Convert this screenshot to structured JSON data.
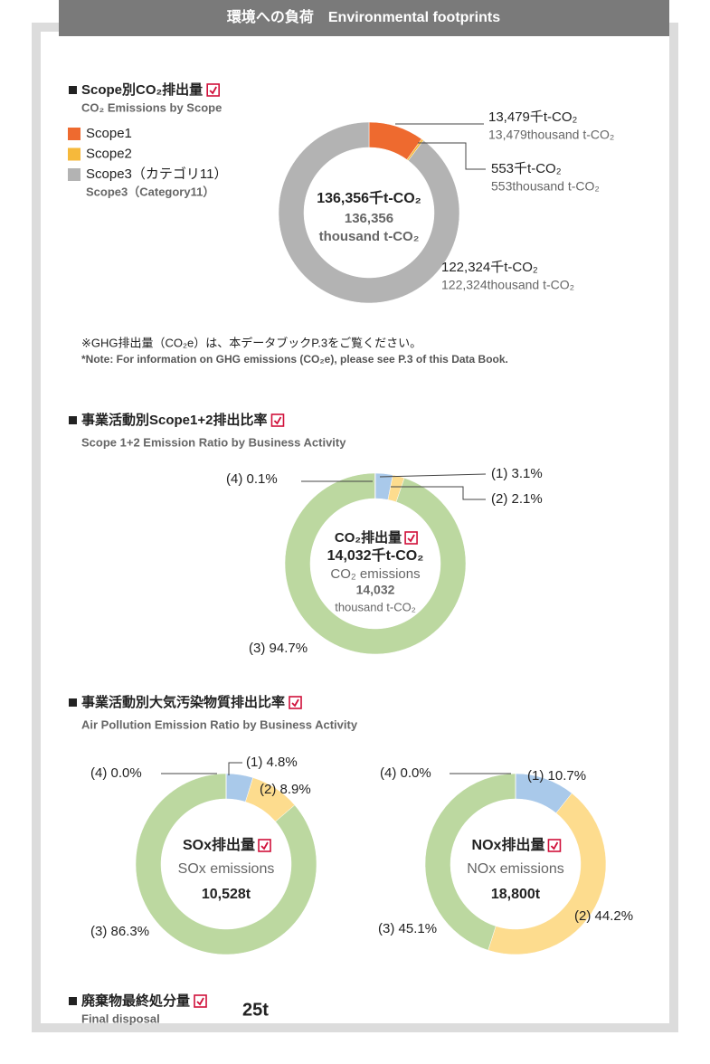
{
  "header": {
    "title": "環境への負荷　Environmental footprints"
  },
  "sections": [
    {
      "title": "Scope別CO₂排出量",
      "subtitle": "CO₂ Emissions by Scope"
    },
    {
      "title": "事業活動別Scope1+2排出比率",
      "subtitle": "Scope 1+2 Emission Ratio by Business Activity"
    },
    {
      "title": "事業活動別大気汚染物質排出比率",
      "subtitle": "Air Pollution Emission Ratio by Business Activity"
    },
    {
      "title": "廃棄物最終処分量",
      "subtitle": "Final disposal",
      "value": "25t"
    }
  ],
  "note": {
    "ja": "※GHG排出量（CO₂e）は、本データブックP.3をご覧ください。",
    "en": "*Note: For information on GHG emissions (CO₂e), please see P.3 of this Data Book."
  },
  "chart_data": [
    {
      "type": "donut",
      "categories": [
        "Scope1",
        "Scope2",
        "Scope3（カテゴリ11）"
      ],
      "legend_notes": [
        null,
        null,
        "Scope3（Category11）"
      ],
      "values": [
        13479,
        553,
        122324
      ],
      "colors": [
        "#ee6a2f",
        "#f6b93b",
        "#b3b3b3"
      ],
      "value_labels": [
        "13,479千t-CO₂",
        "553千t-CO₂",
        "122,324千t-CO₂"
      ],
      "value_labels_en": [
        "13,479thousand t-CO₂",
        "553thousand t-CO₂",
        "122,324thousand  t-CO₂"
      ],
      "center": [
        "136,356千t-CO₂",
        "136,356",
        "thousand t-CO₂"
      ]
    },
    {
      "type": "donut",
      "categories": [
        "(1)",
        "(2)",
        "(3)",
        "(4)"
      ],
      "values": [
        3.1,
        2.1,
        94.7,
        0.1
      ],
      "value_labels": [
        "3.1%",
        "2.1%",
        "94.7%",
        "0.1%"
      ],
      "colors": [
        "#a9c9ea",
        "#fddc8e",
        "#bcd8a0",
        "#b3b3b3"
      ],
      "center": [
        "CO₂排出量",
        "14,032千t-CO₂",
        "CO₂ emissions",
        "14,032",
        "thousand t-CO₂"
      ]
    },
    {
      "type": "donut",
      "categories": [
        "(1)",
        "(2)",
        "(3)",
        "(4)"
      ],
      "values": [
        4.8,
        8.9,
        86.3,
        0.0
      ],
      "value_labels": [
        "4.8%",
        "8.9%",
        "86.3%",
        "0.0%"
      ],
      "colors": [
        "#a9c9ea",
        "#fddc8e",
        "#bcd8a0",
        "#b3b3b3"
      ],
      "center": [
        "SOx排出量",
        "SOx emissions",
        "10,528t"
      ]
    },
    {
      "type": "donut",
      "categories": [
        "(1)",
        "(2)",
        "(3)",
        "(4)"
      ],
      "values": [
        10.7,
        44.2,
        45.1,
        0.0
      ],
      "value_labels": [
        "10.7%",
        "44.2%",
        "45.1%",
        "0.0%"
      ],
      "colors": [
        "#a9c9ea",
        "#fddc8e",
        "#bcd8a0",
        "#b3b3b3"
      ],
      "center": [
        "NOx排出量",
        "NOx emissions",
        "18,800t"
      ]
    }
  ]
}
